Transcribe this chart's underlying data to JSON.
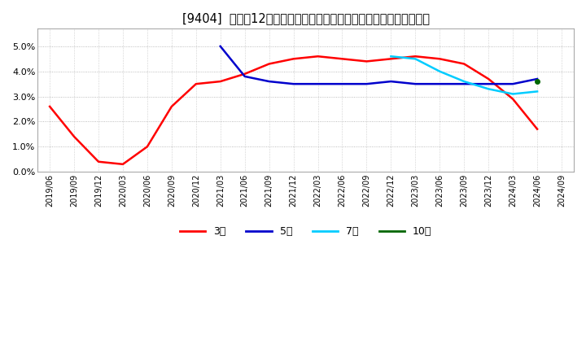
{
  "title": "[9404]  売上高12か月移動合計の対前年同期増減率の標準偏差の推移",
  "title_fontsize": 10.5,
  "ylim": [
    0.0,
    0.057
  ],
  "yticks": [
    0.0,
    0.01,
    0.02,
    0.03,
    0.04,
    0.05
  ],
  "ytick_labels": [
    "0.0%",
    "1.0%",
    "2.0%",
    "3.0%",
    "4.0%",
    "5.0%"
  ],
  "series": {
    "3年": {
      "color": "#ff0000",
      "data": [
        [
          "2019/06",
          0.026
        ],
        [
          "2019/09",
          0.014
        ],
        [
          "2019/12",
          0.004
        ],
        [
          "2020/03",
          0.003
        ],
        [
          "2020/06",
          0.01
        ],
        [
          "2020/09",
          0.026
        ],
        [
          "2020/12",
          0.035
        ],
        [
          "2021/03",
          0.036
        ],
        [
          "2021/06",
          0.039
        ],
        [
          "2021/09",
          0.043
        ],
        [
          "2021/12",
          0.045
        ],
        [
          "2022/03",
          0.046
        ],
        [
          "2022/06",
          0.045
        ],
        [
          "2022/09",
          0.044
        ],
        [
          "2022/12",
          0.045
        ],
        [
          "2023/03",
          0.046
        ],
        [
          "2023/06",
          0.045
        ],
        [
          "2023/09",
          0.043
        ],
        [
          "2023/12",
          0.037
        ],
        [
          "2024/03",
          0.029
        ],
        [
          "2024/06",
          0.017
        ]
      ]
    },
    "5年": {
      "color": "#0000cc",
      "data": [
        [
          "2021/03",
          0.05
        ],
        [
          "2021/06",
          0.038
        ],
        [
          "2021/09",
          0.036
        ],
        [
          "2021/12",
          0.035
        ],
        [
          "2022/03",
          0.035
        ],
        [
          "2022/06",
          0.035
        ],
        [
          "2022/09",
          0.035
        ],
        [
          "2022/12",
          0.036
        ],
        [
          "2023/03",
          0.035
        ],
        [
          "2023/06",
          0.035
        ],
        [
          "2023/09",
          0.035
        ],
        [
          "2023/12",
          0.035
        ],
        [
          "2024/03",
          0.035
        ],
        [
          "2024/06",
          0.037
        ]
      ]
    },
    "7年": {
      "color": "#00ccff",
      "data": [
        [
          "2022/12",
          0.046
        ],
        [
          "2023/03",
          0.045
        ],
        [
          "2023/06",
          0.04
        ],
        [
          "2023/09",
          0.036
        ],
        [
          "2023/12",
          0.033
        ],
        [
          "2024/03",
          0.031
        ],
        [
          "2024/06",
          0.032
        ]
      ]
    },
    "10年": {
      "color": "#006600",
      "data": [
        [
          "2024/06",
          0.036
        ]
      ]
    }
  },
  "legend_labels": [
    "3年",
    "5年",
    "7年",
    "10年"
  ],
  "legend_colors": [
    "#ff0000",
    "#0000cc",
    "#00ccff",
    "#006600"
  ],
  "x_labels": [
    "2019/06",
    "2019/09",
    "2019/12",
    "2020/03",
    "2020/06",
    "2020/09",
    "2020/12",
    "2021/03",
    "2021/06",
    "2021/09",
    "2021/12",
    "2022/03",
    "2022/06",
    "2022/09",
    "2022/12",
    "2023/03",
    "2023/06",
    "2023/09",
    "2023/12",
    "2024/03",
    "2024/06",
    "2024/09"
  ],
  "bg_color": "#ffffff",
  "grid_color": "#aaaaaa",
  "spine_color": "#aaaaaa"
}
